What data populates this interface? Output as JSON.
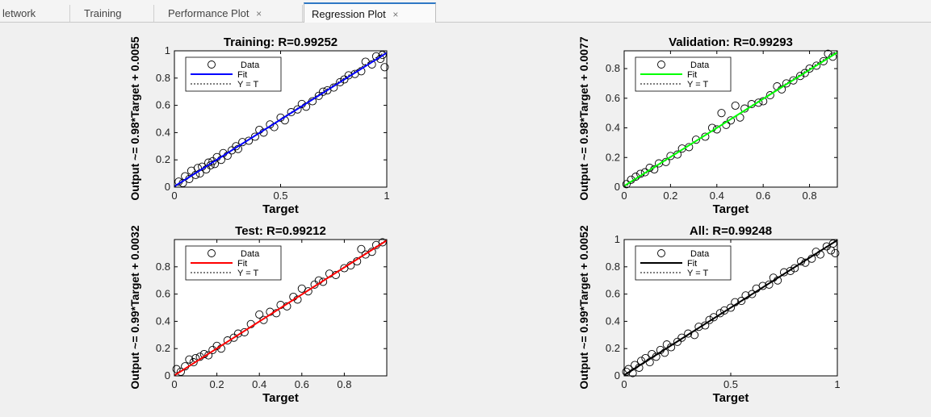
{
  "tabs": [
    {
      "label": "letwork",
      "closable": false,
      "active": false
    },
    {
      "label": "Training",
      "closable": false,
      "active": false
    },
    {
      "label": "Performance Plot",
      "closable": true,
      "active": false
    },
    {
      "label": "Regression Plot",
      "closable": true,
      "active": true
    }
  ],
  "close_glyph": "×",
  "colors": {
    "training_fit": "#0000ff",
    "validation_fit": "#00ff00",
    "test_fit": "#ff0000",
    "all_fit": "#000000",
    "active_tab_accent": "#2f78c5"
  },
  "chart_data": [
    {
      "type": "scatter",
      "title": "Training: R=0.99252",
      "xlabel": "Target",
      "ylabel": "Output ~= 0.98*Target + 0.0055",
      "xlim": [
        0,
        1
      ],
      "ylim": [
        0,
        1
      ],
      "xticks": [
        0,
        0.5,
        1
      ],
      "xtick_labels": [
        "0",
        "0.5",
        "1"
      ],
      "yticks": [
        0,
        0.2,
        0.4,
        0.6,
        0.8,
        1
      ],
      "ytick_labels": [
        "0",
        "0.2",
        "0.4",
        "0.6",
        "0.8",
        "1"
      ],
      "fit": {
        "slope": 0.98,
        "intercept": 0.0055,
        "color": "#0000ff"
      },
      "legend": {
        "position": "top-left",
        "entries": [
          "Data",
          "Fit",
          "Y = T"
        ]
      },
      "x": [
        0.02,
        0.04,
        0.05,
        0.07,
        0.08,
        0.1,
        0.11,
        0.12,
        0.13,
        0.15,
        0.16,
        0.17,
        0.18,
        0.19,
        0.2,
        0.22,
        0.23,
        0.25,
        0.27,
        0.29,
        0.3,
        0.32,
        0.35,
        0.38,
        0.4,
        0.42,
        0.45,
        0.47,
        0.5,
        0.52,
        0.55,
        0.58,
        0.6,
        0.62,
        0.65,
        0.68,
        0.7,
        0.72,
        0.75,
        0.78,
        0.8,
        0.82,
        0.85,
        0.88,
        0.9,
        0.93,
        0.95,
        0.97,
        0.98,
        0.99
      ],
      "y": [
        0.04,
        0.03,
        0.08,
        0.06,
        0.12,
        0.09,
        0.14,
        0.1,
        0.15,
        0.13,
        0.18,
        0.16,
        0.19,
        0.17,
        0.22,
        0.2,
        0.25,
        0.23,
        0.27,
        0.3,
        0.28,
        0.33,
        0.34,
        0.37,
        0.42,
        0.4,
        0.46,
        0.44,
        0.51,
        0.49,
        0.55,
        0.57,
        0.61,
        0.59,
        0.63,
        0.67,
        0.7,
        0.71,
        0.73,
        0.77,
        0.79,
        0.82,
        0.83,
        0.85,
        0.92,
        0.9,
        0.96,
        0.94,
        0.97,
        0.88
      ]
    },
    {
      "type": "scatter",
      "title": "Validation: R=0.99293",
      "xlabel": "Target",
      "ylabel": "Output ~= 0.98*Target + 0.0077",
      "xlim": [
        0,
        0.92
      ],
      "ylim": [
        0,
        0.92
      ],
      "xticks": [
        0,
        0.2,
        0.4,
        0.6,
        0.8
      ],
      "xtick_labels": [
        "0",
        "0.2",
        "0.4",
        "0.6",
        "0.8"
      ],
      "yticks": [
        0,
        0.2,
        0.4,
        0.6,
        0.8
      ],
      "ytick_labels": [
        "0",
        "0.2",
        "0.4",
        "0.6",
        "0.8"
      ],
      "fit": {
        "slope": 0.98,
        "intercept": 0.0077,
        "color": "#00ff00"
      },
      "legend": {
        "position": "top-left",
        "entries": [
          "Data",
          "Fit",
          "Y = T"
        ]
      },
      "x": [
        0.01,
        0.03,
        0.05,
        0.07,
        0.09,
        0.11,
        0.13,
        0.15,
        0.18,
        0.2,
        0.23,
        0.25,
        0.28,
        0.31,
        0.35,
        0.38,
        0.4,
        0.42,
        0.44,
        0.46,
        0.48,
        0.5,
        0.52,
        0.55,
        0.58,
        0.6,
        0.63,
        0.66,
        0.68,
        0.7,
        0.73,
        0.76,
        0.78,
        0.8,
        0.83,
        0.86,
        0.88,
        0.9
      ],
      "y": [
        0.02,
        0.05,
        0.07,
        0.09,
        0.1,
        0.13,
        0.12,
        0.16,
        0.17,
        0.21,
        0.22,
        0.26,
        0.27,
        0.32,
        0.34,
        0.4,
        0.39,
        0.5,
        0.42,
        0.45,
        0.55,
        0.47,
        0.53,
        0.56,
        0.57,
        0.58,
        0.62,
        0.68,
        0.66,
        0.7,
        0.72,
        0.75,
        0.77,
        0.8,
        0.82,
        0.85,
        0.9,
        0.88
      ]
    },
    {
      "type": "scatter",
      "title": "Test: R=0.99212",
      "xlabel": "Target",
      "ylabel": "Output ~= 0.99*Target + 0.0032",
      "xlim": [
        0,
        1
      ],
      "ylim": [
        0,
        1
      ],
      "xticks": [
        0,
        0.2,
        0.4,
        0.6,
        0.8
      ],
      "xtick_labels": [
        "0",
        "0.2",
        "0.4",
        "0.6",
        "0.8"
      ],
      "yticks": [
        0,
        0.2,
        0.4,
        0.6,
        0.8
      ],
      "ytick_labels": [
        "0",
        "0.2",
        "0.4",
        "0.6",
        "0.8"
      ],
      "fit": {
        "slope": 0.99,
        "intercept": 0.0032,
        "color": "#ff0000"
      },
      "legend": {
        "position": "top-left",
        "entries": [
          "Data",
          "Fit",
          "Y = T"
        ]
      },
      "x": [
        0.01,
        0.03,
        0.05,
        0.07,
        0.09,
        0.1,
        0.12,
        0.14,
        0.16,
        0.18,
        0.2,
        0.22,
        0.25,
        0.28,
        0.3,
        0.33,
        0.36,
        0.4,
        0.42,
        0.45,
        0.48,
        0.5,
        0.53,
        0.56,
        0.58,
        0.6,
        0.63,
        0.66,
        0.68,
        0.7,
        0.73,
        0.76,
        0.8,
        0.83,
        0.86,
        0.88,
        0.9,
        0.93,
        0.95,
        0.98
      ],
      "y": [
        0.05,
        0.03,
        0.07,
        0.12,
        0.1,
        0.13,
        0.14,
        0.16,
        0.15,
        0.19,
        0.22,
        0.2,
        0.26,
        0.28,
        0.31,
        0.32,
        0.38,
        0.45,
        0.41,
        0.47,
        0.46,
        0.52,
        0.51,
        0.58,
        0.56,
        0.64,
        0.62,
        0.67,
        0.7,
        0.69,
        0.75,
        0.74,
        0.79,
        0.81,
        0.84,
        0.93,
        0.89,
        0.91,
        0.96,
        0.98
      ]
    },
    {
      "type": "scatter",
      "title": "All: R=0.99248",
      "xlabel": "Target",
      "ylabel": "Output ~= 0.99*Target + 0.0052",
      "xlim": [
        0,
        1
      ],
      "ylim": [
        0,
        1
      ],
      "xticks": [
        0,
        0.5,
        1
      ],
      "xtick_labels": [
        "0",
        "0.5",
        "1"
      ],
      "yticks": [
        0,
        0.2,
        0.4,
        0.6,
        0.8,
        1
      ],
      "ytick_labels": [
        "0",
        "0.2",
        "0.4",
        "0.6",
        "0.8",
        "1"
      ],
      "fit": {
        "slope": 0.99,
        "intercept": 0.0052,
        "color": "#000000"
      },
      "legend": {
        "position": "top-left",
        "entries": [
          "Data",
          "Fit",
          "Y = T"
        ]
      },
      "x": [
        0.01,
        0.02,
        0.04,
        0.05,
        0.07,
        0.08,
        0.1,
        0.12,
        0.13,
        0.15,
        0.17,
        0.19,
        0.2,
        0.22,
        0.25,
        0.27,
        0.3,
        0.33,
        0.35,
        0.38,
        0.4,
        0.42,
        0.45,
        0.47,
        0.5,
        0.52,
        0.55,
        0.57,
        0.6,
        0.62,
        0.65,
        0.68,
        0.7,
        0.72,
        0.75,
        0.78,
        0.8,
        0.83,
        0.85,
        0.88,
        0.9,
        0.92,
        0.95,
        0.97,
        0.98,
        0.99
      ],
      "y": [
        0.03,
        0.05,
        0.02,
        0.08,
        0.06,
        0.11,
        0.13,
        0.1,
        0.16,
        0.14,
        0.19,
        0.17,
        0.23,
        0.21,
        0.25,
        0.28,
        0.31,
        0.3,
        0.36,
        0.37,
        0.41,
        0.43,
        0.46,
        0.48,
        0.5,
        0.54,
        0.55,
        0.59,
        0.6,
        0.64,
        0.66,
        0.67,
        0.72,
        0.7,
        0.76,
        0.77,
        0.79,
        0.84,
        0.83,
        0.86,
        0.91,
        0.89,
        0.95,
        0.92,
        0.97,
        0.9
      ]
    }
  ]
}
